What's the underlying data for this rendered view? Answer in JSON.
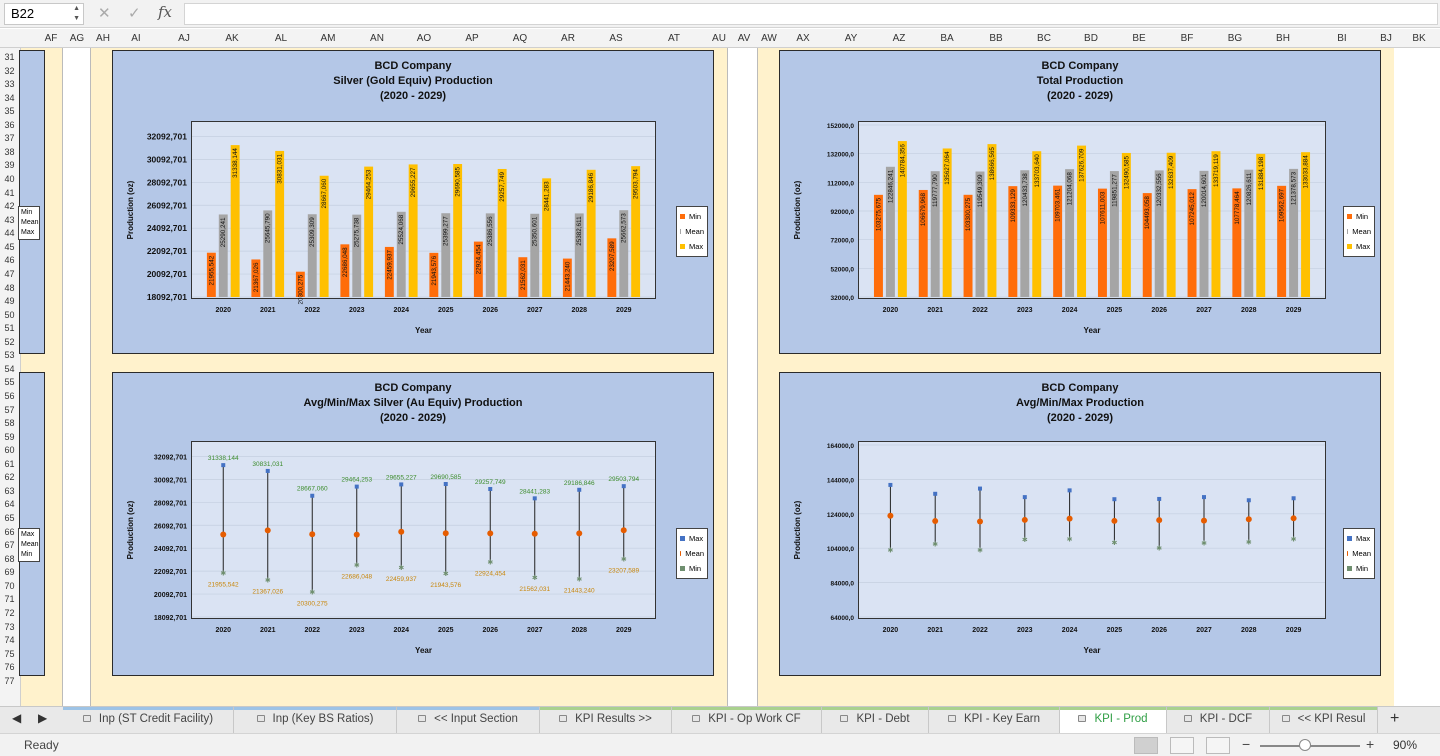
{
  "formula_bar": {
    "cell_ref": "B22",
    "fx_label": "fx",
    "formula": ""
  },
  "columns": [
    "AF",
    "AG",
    "AH",
    "AI",
    "AJ",
    "AK",
    "AL",
    "AM",
    "AN",
    "AO",
    "AP",
    "AQ",
    "AR",
    "AS",
    "AT",
    "AU",
    "AV",
    "AW",
    "AX",
    "AY",
    "AZ",
    "BA",
    "BB",
    "BC",
    "BD",
    "BE",
    "BF",
    "BG",
    "BH",
    "BI",
    "BJ",
    "BK"
  ],
  "rows": [
    "31",
    "32",
    "33",
    "34",
    "35",
    "36",
    "37",
    "38",
    "39",
    "40",
    "41",
    "42",
    "43",
    "44",
    "45",
    "46",
    "47",
    "48",
    "49",
    "50",
    "51",
    "52",
    "53",
    "54",
    "55",
    "56",
    "57",
    "58",
    "59",
    "60",
    "61",
    "62",
    "63",
    "64",
    "65",
    "66",
    "67",
    "68",
    "69",
    "70",
    "71",
    "72",
    "73",
    "74",
    "75",
    "76",
    "77"
  ],
  "mini_legend_top": [
    "Min",
    "Mean",
    "Max"
  ],
  "mini_legend_bottom": [
    "Max",
    "Mean",
    "Min"
  ],
  "chart_data": [
    {
      "type": "bar",
      "title": "BCD Company",
      "subtitle": "Silver (Gold Equiv) Production",
      "period": "(2020 - 2029)",
      "xlabel": "Year",
      "ylabel": "Production (oz)",
      "ylim": [
        18092.701,
        33092.701
      ],
      "yticks": [
        "18092,701",
        "20092,701",
        "22092,701",
        "24092,701",
        "26092,701",
        "28092,701",
        "30092,701",
        "32092,701"
      ],
      "ytick_values": [
        18092.701,
        20092.701,
        22092.701,
        24092.701,
        26092.701,
        28092.701,
        30092.701,
        32092.701
      ],
      "categories": [
        "2020",
        "2021",
        "2022",
        "2023",
        "2024",
        "2025",
        "2026",
        "2027",
        "2028",
        "2029"
      ],
      "legend_position": "right",
      "series": [
        {
          "name": "Min",
          "color": "#ff6d0a",
          "values": [
            21955.542,
            21367.026,
            20300.275,
            22686.048,
            22459.937,
            21943.576,
            22924.454,
            21562.031,
            21443.24,
            23207.589
          ],
          "labels": [
            "21955,542",
            "21367,026",
            "20300,275",
            "22686,048",
            "22459,937",
            "21943,576",
            "22924,454",
            "21562,031",
            "21443,240",
            "23207,589"
          ]
        },
        {
          "name": "Mean",
          "color": "#a5a5a5",
          "values": [
            25290.241,
            25645.79,
            25309.309,
            25275.738,
            25524.068,
            25399.277,
            25386.556,
            25350.601,
            25382.611,
            25662.573
          ],
          "labels": [
            "25290,241",
            "25645,790",
            "25309,309",
            "25275,738",
            "25524,068",
            "25399,277",
            "25386,556",
            "25350,601",
            "25382,611",
            "25662,573"
          ]
        },
        {
          "name": "Max",
          "color": "#ffc000",
          "values": [
            31338.144,
            30831.031,
            28667.06,
            29464.253,
            29655.227,
            29690.585,
            29257.749,
            28441.283,
            29186.846,
            29503.794
          ],
          "labels": [
            "31338,144",
            "30831,031",
            "28667,060",
            "29464,253",
            "29655,227",
            "29690,585",
            "29257,749",
            "28441,283",
            "29186,846",
            "29503,794"
          ]
        }
      ]
    },
    {
      "type": "bar",
      "title": "BCD Company",
      "subtitle": "Total Production",
      "period": "(2020 - 2029)",
      "xlabel": "Year",
      "ylabel": "Production (oz)",
      "ylim": [
        32000,
        152000
      ],
      "yticks": [
        "32000,0",
        "52000,0",
        "72000,0",
        "92000,0",
        "112000,0",
        "132000,0",
        "152000,0"
      ],
      "ytick_values": [
        32000,
        52000,
        72000,
        92000,
        112000,
        132000,
        152000
      ],
      "categories": [
        "2020",
        "2021",
        "2022",
        "2023",
        "2024",
        "2025",
        "2026",
        "2027",
        "2028",
        "2029"
      ],
      "legend_position": "right",
      "series": [
        {
          "name": "Min",
          "color": "#ff6d0a",
          "values": [
            103275.675,
            106679.968,
            103300.275,
            109333.129,
            109703.461,
            107611.003,
            104493.058,
            107245.012,
            107778.464,
            109562.697
          ],
          "labels": [
            "103275,675",
            "106679,968",
            "103300,275",
            "109333,129",
            "109703,461",
            "107611,003",
            "104493,058",
            "107245,012",
            "107778,464",
            "109562,697"
          ]
        },
        {
          "name": "Mean",
          "color": "#a5a5a5",
          "values": [
            122846.241,
            119777.79,
            119549.309,
            120433.738,
            121204.068,
            119851.277,
            120332.556,
            120014.601,
            120826.611,
            121378.573
          ],
          "labels": [
            "122846,241",
            "119777,790",
            "119549,309",
            "120433,738",
            "121204,068",
            "119851,277",
            "120332,556",
            "120014,601",
            "120826,611",
            "121378,573"
          ]
        },
        {
          "name": "Max",
          "color": "#ffc000",
          "values": [
            140784.356,
            135627.064,
            138666.565,
            133703.64,
            137626.709,
            132490.585,
            132637.409,
            133719.119,
            131884.198,
            133033.884
          ],
          "labels": [
            "140784,356",
            "135627,064",
            "138666,565",
            "133703,640",
            "137626,709",
            "132490,585",
            "132637,409",
            "133719,119",
            "131884,198",
            "133033,884"
          ]
        }
      ]
    },
    {
      "type": "line",
      "title": "BCD Company",
      "subtitle": "Avg/Min/Max Silver (Au Equiv) Production",
      "period": "(2020 - 2029)",
      "xlabel": "Year",
      "ylabel": "Production (oz)",
      "ylim": [
        18092.701,
        33092.701
      ],
      "yticks": [
        "18092,701",
        "20092,701",
        "22092,701",
        "24092,701",
        "26092,701",
        "28092,701",
        "30092,701",
        "32092,701"
      ],
      "ytick_values": [
        18092.701,
        20092.701,
        22092.701,
        24092.701,
        26092.701,
        28092.701,
        30092.701,
        32092.701
      ],
      "categories": [
        "2020",
        "2021",
        "2022",
        "2023",
        "2024",
        "2025",
        "2026",
        "2027",
        "2028",
        "2029"
      ],
      "legend_position": "right",
      "series": [
        {
          "name": "Max",
          "color": "#4472c4",
          "label_color": "#3c8c2c",
          "values": [
            31338.144,
            30831.031,
            28667.06,
            29464.253,
            29655.227,
            29690.585,
            29257.749,
            28441.283,
            29186.846,
            29503.794
          ],
          "labels": [
            "31338,144",
            "30831,031",
            "28667,060",
            "29464,253",
            "29655,227",
            "29690,585",
            "29257,749",
            "28441,283",
            "29186,846",
            "29503,794"
          ]
        },
        {
          "name": "Mean",
          "color": "#e65c00",
          "values": [
            25290.241,
            25645.79,
            25309.309,
            25275.738,
            25524.068,
            25399.277,
            25386.556,
            25350.601,
            25382.611,
            25662.573
          ]
        },
        {
          "name": "Min",
          "color": "#6f8f6f",
          "label_color": "#c8860a",
          "values": [
            21955.542,
            21367.026,
            20300.275,
            22686.048,
            22459.937,
            21943.576,
            22924.454,
            21562.031,
            21443.24,
            23207.589
          ],
          "labels": [
            "21955,542",
            "21367,026",
            "20300,275",
            "22686,048",
            "22459,937",
            "21943,576",
            "22924,454",
            "21562,031",
            "21443,240",
            "23207,589"
          ]
        }
      ]
    },
    {
      "type": "line",
      "title": "BCD Company",
      "subtitle": "Avg/Min/Max Production",
      "period": "(2020 - 2029)",
      "xlabel": "Year",
      "ylabel": "Production (oz)",
      "ylim": [
        64000,
        164000
      ],
      "yticks": [
        "64000,0",
        "84000,0",
        "104000,0",
        "124000,0",
        "144000,0",
        "164000,0"
      ],
      "ytick_values": [
        64000,
        84000,
        104000,
        124000,
        144000,
        164000
      ],
      "categories": [
        "2020",
        "2021",
        "2022",
        "2023",
        "2024",
        "2025",
        "2026",
        "2027",
        "2028",
        "2029"
      ],
      "legend_position": "right",
      "series": [
        {
          "name": "Max",
          "color": "#4472c4",
          "values": [
            140784.356,
            135627.064,
            138666.565,
            133703.64,
            137626.709,
            132490.585,
            132637.409,
            133719.119,
            131884.198,
            133033.884
          ]
        },
        {
          "name": "Mean",
          "color": "#e65c00",
          "values": [
            122846.241,
            119777.79,
            119549.309,
            120433.738,
            121204.068,
            119851.277,
            120332.556,
            120014.601,
            120826.611,
            121378.573
          ]
        },
        {
          "name": "Min",
          "color": "#6f8f6f",
          "values": [
            103275.675,
            106679.968,
            103300.275,
            109333.129,
            109703.461,
            107611.003,
            104493.058,
            107245.012,
            107778.464,
            109562.697
          ]
        }
      ]
    }
  ],
  "sheet_tabs": [
    {
      "label": "Inp (ST Credit Facility)",
      "locked": true,
      "color": "#9dc3e6"
    },
    {
      "label": "Inp (Key BS Ratios)",
      "locked": true,
      "color": "#9dc3e6"
    },
    {
      "label": "<< Input Section",
      "locked": true,
      "color": "#9dc3e6"
    },
    {
      "label": "KPI Results >>",
      "locked": true,
      "color": "#a9d18e"
    },
    {
      "label": "KPI - Op Work CF",
      "locked": true,
      "color": "#a9d18e"
    },
    {
      "label": "KPI - Debt",
      "locked": true,
      "color": "#a9d18e"
    },
    {
      "label": "KPI - Key Earn",
      "locked": true,
      "color": "#a9d18e"
    },
    {
      "label": "KPI - Prod",
      "locked": true,
      "color": "#a9d18e",
      "active": true
    },
    {
      "label": "KPI - DCF",
      "locked": true,
      "color": "#a9d18e"
    },
    {
      "label": "<< KPI Resul",
      "locked": true,
      "color": "#a9d18e"
    }
  ],
  "status_bar": {
    "ready": "Ready",
    "zoom": "90%",
    "minus": "−",
    "plus": "+"
  }
}
